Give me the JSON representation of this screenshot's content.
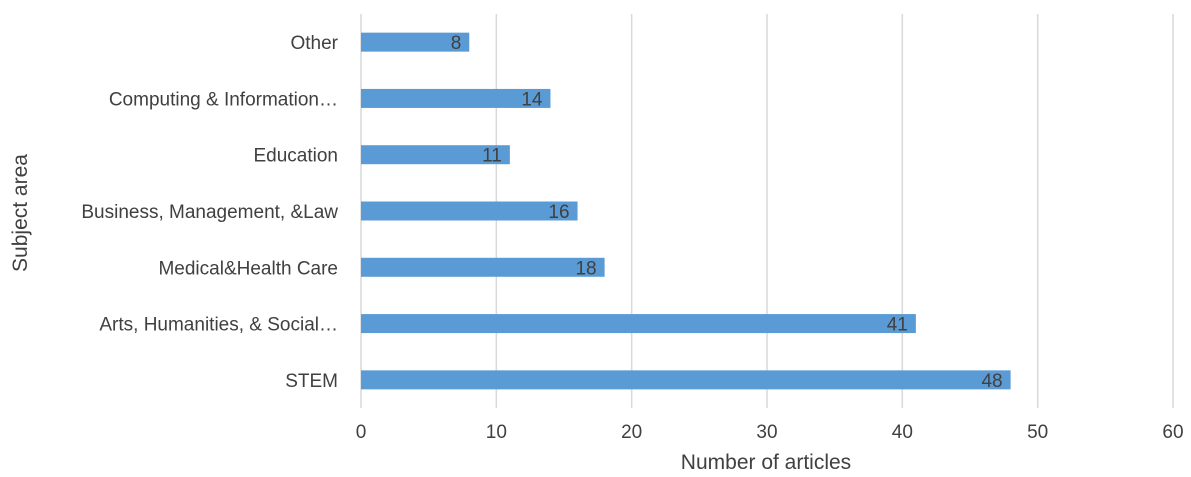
{
  "chart_data": {
    "type": "bar",
    "orientation": "horizontal",
    "categories": [
      "Other",
      "Computing & Information…",
      "Education",
      "Business, Management, &Law",
      "Medical&Health Care",
      "Arts, Humanities, & Social…",
      "STEM"
    ],
    "values": [
      8,
      14,
      11,
      16,
      18,
      41,
      48
    ],
    "xlabel": "Number of articles",
    "ylabel": "Subject area",
    "xlim": [
      0,
      60
    ],
    "xticks": [
      "0",
      "10",
      "20",
      "30",
      "40",
      "50",
      "60"
    ],
    "grid": "vertical",
    "bar_color": "#5b9bd5",
    "data_labels": true
  }
}
